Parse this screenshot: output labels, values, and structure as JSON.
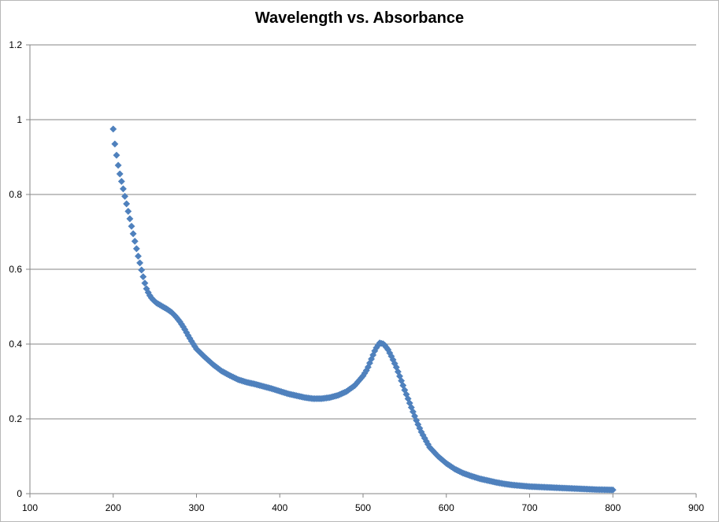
{
  "chart_data": {
    "type": "scatter",
    "title": "Wavelength vs. Absorbance",
    "xlabel": "",
    "ylabel": "",
    "xlim": [
      100,
      900
    ],
    "ylim": [
      0,
      1.2
    ],
    "x_ticks": [
      "100",
      "200",
      "300",
      "400",
      "500",
      "600",
      "700",
      "800",
      "900"
    ],
    "y_ticks": [
      "0",
      "0.2",
      "0.4",
      "0.6",
      "0.8",
      "1",
      "1.2"
    ],
    "gridlines": "horizontal",
    "legend": "none",
    "marker": "diamond",
    "series_color": "#4f81bd",
    "series": [
      {
        "x_start": 200,
        "x_end": 800,
        "x_step": 2,
        "key_points": [
          [
            200,
            0.975
          ],
          [
            202,
            0.935
          ],
          [
            204,
            0.905
          ],
          [
            206,
            0.878
          ],
          [
            208,
            0.855
          ],
          [
            210,
            0.835
          ],
          [
            212,
            0.815
          ],
          [
            214,
            0.795
          ],
          [
            216,
            0.775
          ],
          [
            218,
            0.755
          ],
          [
            220,
            0.735
          ],
          [
            222,
            0.715
          ],
          [
            224,
            0.695
          ],
          [
            226,
            0.675
          ],
          [
            228,
            0.655
          ],
          [
            230,
            0.635
          ],
          [
            232,
            0.617
          ],
          [
            234,
            0.598
          ],
          [
            236,
            0.58
          ],
          [
            238,
            0.563
          ],
          [
            240,
            0.548
          ],
          [
            243,
            0.533
          ],
          [
            247,
            0.52
          ],
          [
            252,
            0.51
          ],
          [
            258,
            0.502
          ],
          [
            265,
            0.493
          ],
          [
            270,
            0.485
          ],
          [
            275,
            0.474
          ],
          [
            280,
            0.46
          ],
          [
            285,
            0.443
          ],
          [
            290,
            0.423
          ],
          [
            295,
            0.404
          ],
          [
            300,
            0.387
          ],
          [
            310,
            0.365
          ],
          [
            320,
            0.345
          ],
          [
            330,
            0.328
          ],
          [
            340,
            0.316
          ],
          [
            350,
            0.305
          ],
          [
            360,
            0.298
          ],
          [
            370,
            0.293
          ],
          [
            380,
            0.287
          ],
          [
            390,
            0.281
          ],
          [
            400,
            0.274
          ],
          [
            410,
            0.267
          ],
          [
            420,
            0.262
          ],
          [
            430,
            0.257
          ],
          [
            440,
            0.254
          ],
          [
            450,
            0.254
          ],
          [
            460,
            0.257
          ],
          [
            470,
            0.263
          ],
          [
            480,
            0.273
          ],
          [
            490,
            0.289
          ],
          [
            500,
            0.315
          ],
          [
            505,
            0.333
          ],
          [
            510,
            0.36
          ],
          [
            515,
            0.387
          ],
          [
            520,
            0.403
          ],
          [
            525,
            0.4
          ],
          [
            530,
            0.385
          ],
          [
            535,
            0.363
          ],
          [
            540,
            0.338
          ],
          [
            545,
            0.308
          ],
          [
            550,
            0.277
          ],
          [
            555,
            0.248
          ],
          [
            560,
            0.219
          ],
          [
            565,
            0.19
          ],
          [
            570,
            0.165
          ],
          [
            575,
            0.144
          ],
          [
            580,
            0.124
          ],
          [
            590,
            0.1
          ],
          [
            600,
            0.081
          ],
          [
            610,
            0.066
          ],
          [
            620,
            0.055
          ],
          [
            630,
            0.047
          ],
          [
            640,
            0.04
          ],
          [
            650,
            0.035
          ],
          [
            660,
            0.03
          ],
          [
            670,
            0.026
          ],
          [
            680,
            0.023
          ],
          [
            690,
            0.021
          ],
          [
            700,
            0.019
          ],
          [
            720,
            0.017
          ],
          [
            740,
            0.015
          ],
          [
            760,
            0.013
          ],
          [
            780,
            0.011
          ],
          [
            800,
            0.01
          ]
        ]
      }
    ]
  }
}
